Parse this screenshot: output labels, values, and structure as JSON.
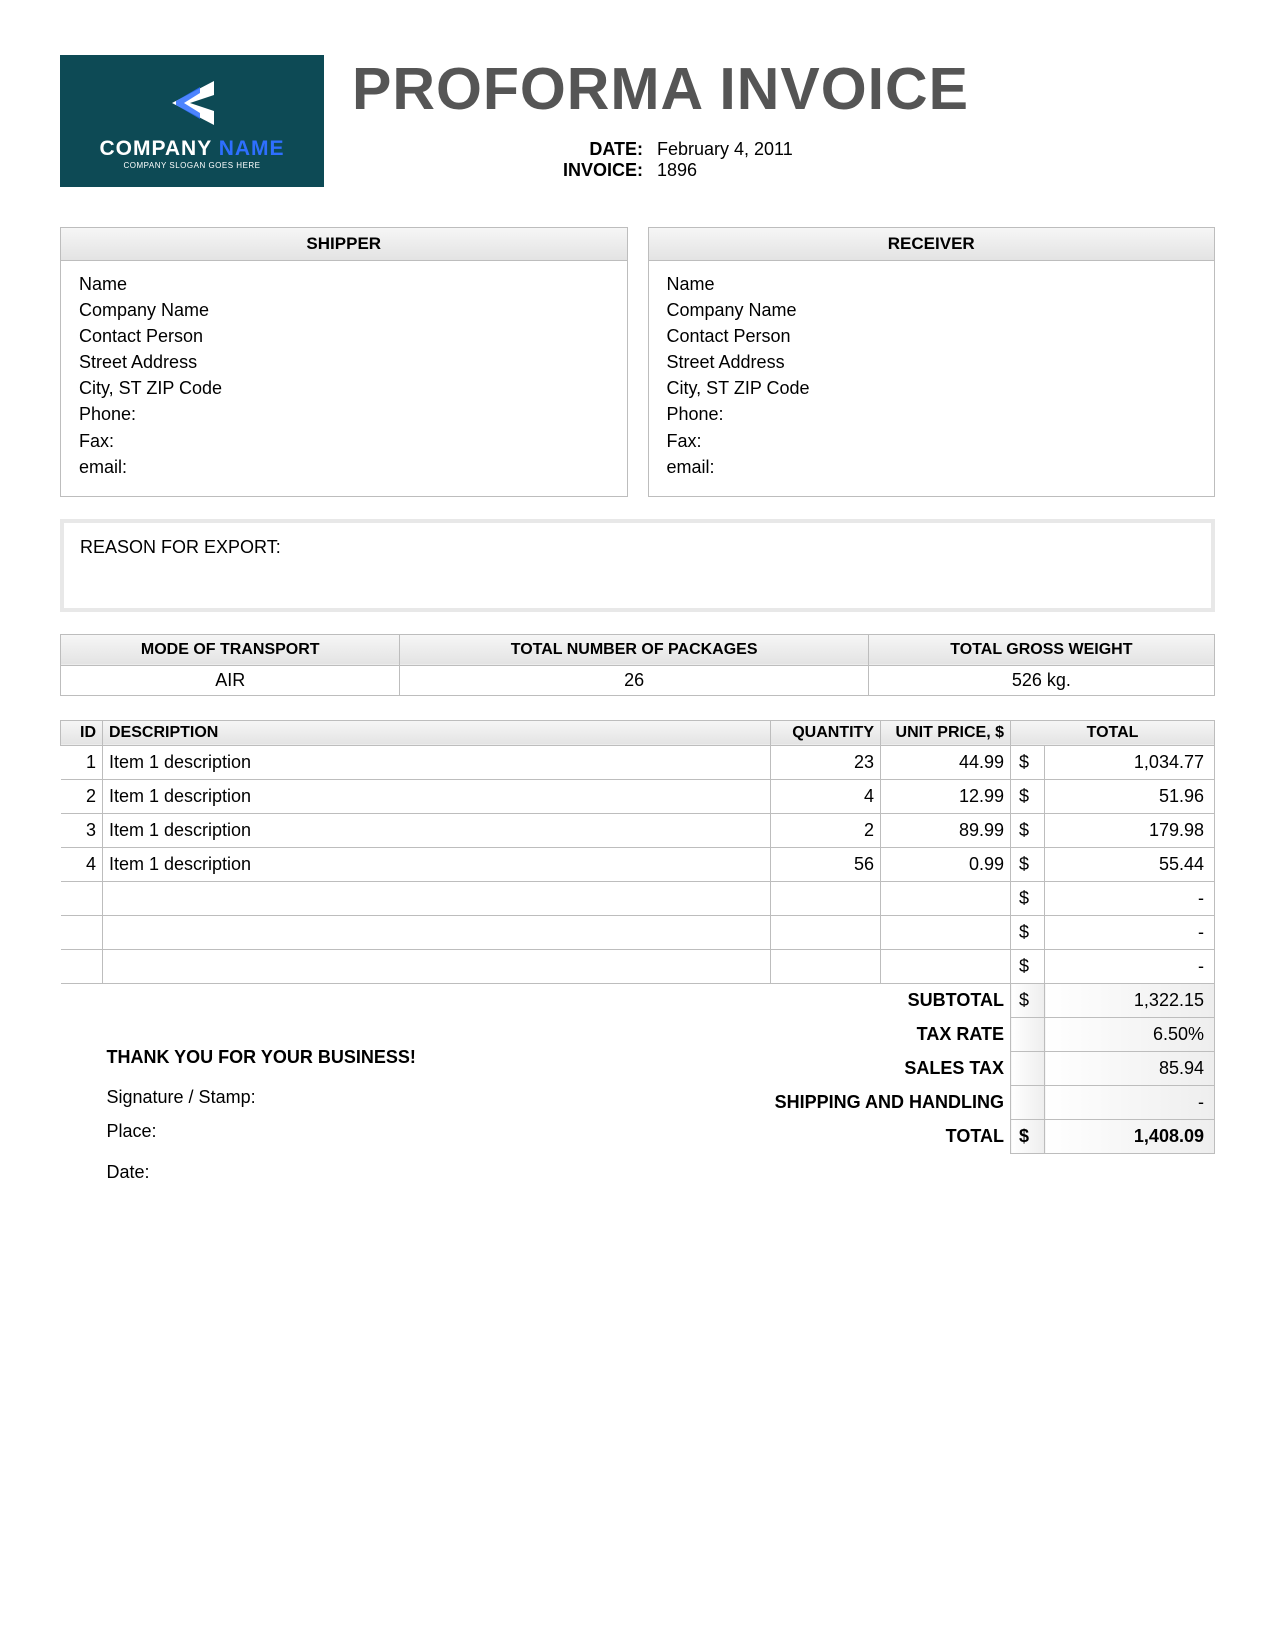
{
  "logo": {
    "bg_color": "#0d4a55",
    "company_word1": "COMPANY",
    "company_word2": "NAME",
    "slogan": "COMPANY SLOGAN GOES HERE",
    "word1_color": "#ffffff",
    "word2_color": "#2e6fff"
  },
  "doc_title": "PROFORMA INVOICE",
  "meta": {
    "date_label": "DATE:",
    "date_value": "February 4, 2011",
    "invoice_label": "INVOICE:",
    "invoice_value": "1896"
  },
  "shipper": {
    "header": "SHIPPER",
    "lines": [
      "Name",
      "Company Name",
      "Contact Person",
      "Street Address",
      "City, ST  ZIP Code",
      "Phone:",
      "Fax:",
      "email:"
    ]
  },
  "receiver": {
    "header": "RECEIVER",
    "lines": [
      "Name",
      "Company Name",
      "Contact Person",
      "Street Address",
      "City, ST  ZIP Code",
      "Phone:",
      "Fax:",
      "email:"
    ]
  },
  "export_reason_label": "REASON FOR EXPORT:",
  "transport": {
    "headers": [
      "MODE OF TRANSPORT",
      "TOTAL NUMBER OF PACKAGES",
      "TOTAL GROSS WEIGHT"
    ],
    "values": [
      "AIR",
      "26",
      "526 kg."
    ]
  },
  "items_headers": {
    "id": "ID",
    "desc": "DESCRIPTION",
    "qty": "QUANTITY",
    "unit": "UNIT PRICE, $",
    "total": "TOTAL"
  },
  "items": [
    {
      "id": "1",
      "desc": "Item 1 description",
      "qty": "23",
      "unit": "44.99",
      "cur": "$",
      "total": "1,034.77"
    },
    {
      "id": "2",
      "desc": "Item 1 description",
      "qty": "4",
      "unit": "12.99",
      "cur": "$",
      "total": "51.96"
    },
    {
      "id": "3",
      "desc": "Item 1 description",
      "qty": "2",
      "unit": "89.99",
      "cur": "$",
      "total": "179.98"
    },
    {
      "id": "4",
      "desc": "Item 1 description",
      "qty": "56",
      "unit": "0.99",
      "cur": "$",
      "total": "55.44"
    },
    {
      "id": "",
      "desc": "",
      "qty": "",
      "unit": "",
      "cur": "$",
      "total": "-"
    },
    {
      "id": "",
      "desc": "",
      "qty": "",
      "unit": "",
      "cur": "$",
      "total": "-"
    },
    {
      "id": "",
      "desc": "",
      "qty": "",
      "unit": "",
      "cur": "$",
      "total": "-"
    }
  ],
  "summary": {
    "subtotal_label": "SUBTOTAL",
    "subtotal_cur": "$",
    "subtotal_val": "1,322.15",
    "taxrate_label": "TAX RATE",
    "taxrate_val": "6.50%",
    "salestax_label": "SALES TAX",
    "salestax_val": "85.94",
    "ship_label": "SHIPPING AND HANDLING",
    "ship_val": "-",
    "total_label": "TOTAL",
    "total_cur": "$",
    "total_val": "1,408.09"
  },
  "footer": {
    "thanks": "THANK YOU FOR YOUR BUSINESS!",
    "signature": "Signature / Stamp:",
    "place": "Place:",
    "date": "Date:"
  },
  "colors": {
    "title_color": "#555555",
    "border_color": "#bdbdbd",
    "header_grad_top": "#f6f6f6",
    "header_grad_bottom": "#e3e3e3"
  }
}
